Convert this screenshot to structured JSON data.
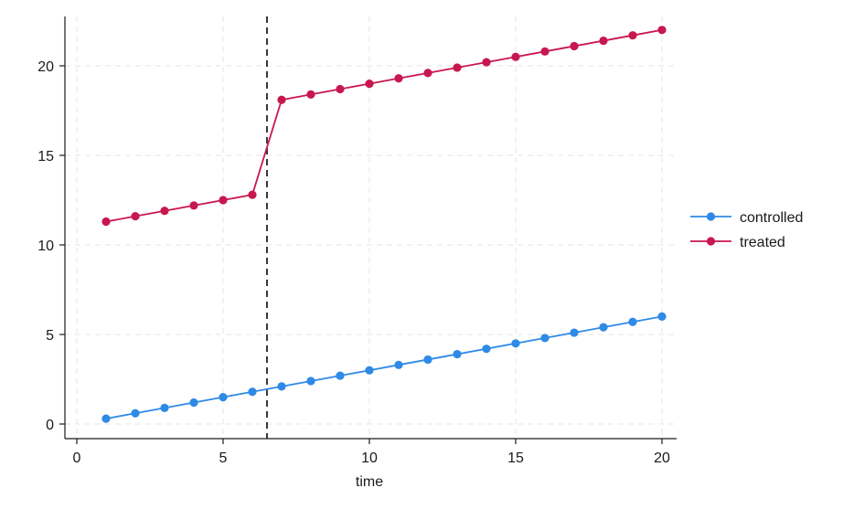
{
  "chart_data": {
    "type": "line",
    "xlabel": "time",
    "ylabel": "",
    "xlim": [
      0,
      20
    ],
    "ylim": [
      0,
      22
    ],
    "x_ticks": [
      0,
      5,
      10,
      15,
      20
    ],
    "y_ticks": [
      0,
      5,
      10,
      15,
      20
    ],
    "grid": true,
    "legend_position": "right",
    "vertical_reference_line": {
      "x": 6.5,
      "style": "dashed",
      "color": "#222222"
    },
    "x": [
      1,
      2,
      3,
      4,
      5,
      6,
      7,
      8,
      9,
      10,
      11,
      12,
      13,
      14,
      15,
      16,
      17,
      18,
      19,
      20
    ],
    "series": [
      {
        "name": "controlled",
        "color": "#2e8ae6",
        "values": [
          0.3,
          0.6,
          0.9,
          1.2,
          1.5,
          1.8,
          2.1,
          2.4,
          2.7,
          3.0,
          3.3,
          3.6,
          3.9,
          4.2,
          4.5,
          4.8,
          5.1,
          5.4,
          5.7,
          6.0
        ]
      },
      {
        "name": "treated",
        "color": "#c8174f",
        "values": [
          11.3,
          11.6,
          11.9,
          12.2,
          12.5,
          12.8,
          18.1,
          18.4,
          18.7,
          19.0,
          19.3,
          19.6,
          19.9,
          20.2,
          20.5,
          20.8,
          21.1,
          21.4,
          21.7,
          22.0
        ]
      }
    ]
  }
}
